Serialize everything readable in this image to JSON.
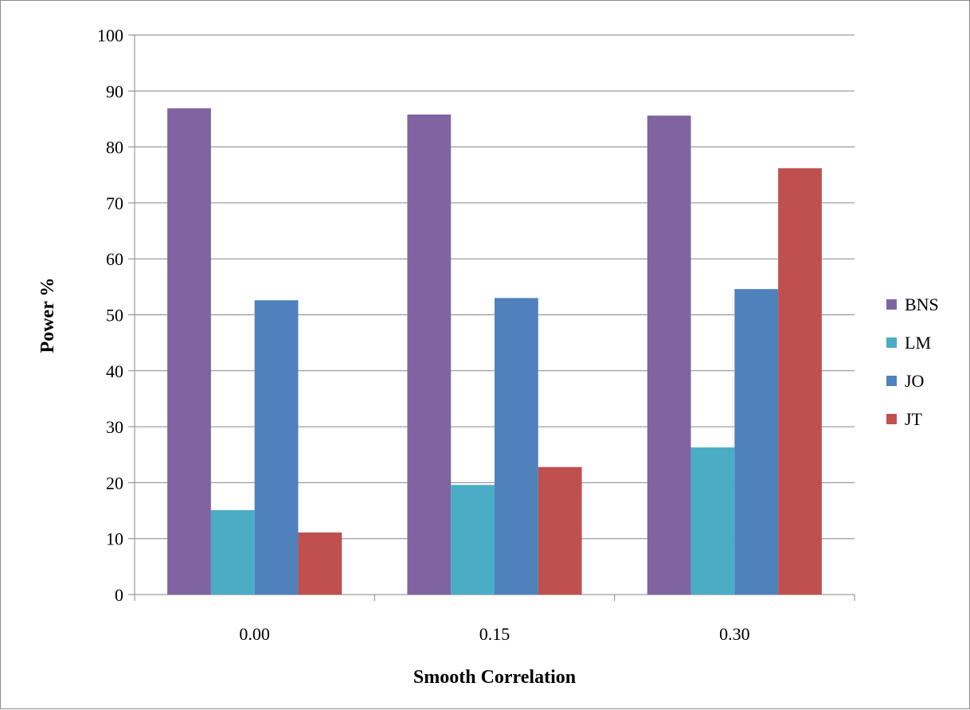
{
  "chart_data": {
    "type": "bar",
    "title": "",
    "xlabel": "Smooth Correlation",
    "ylabel": "Power %",
    "categories": [
      "0.00",
      "0.15",
      "0.30"
    ],
    "ylim": [
      0,
      100
    ],
    "yticks": [
      "0",
      "10",
      "20",
      "30",
      "40",
      "50",
      "60",
      "70",
      "80",
      "90",
      "100"
    ],
    "grid": true,
    "legend_position": "right",
    "series": [
      {
        "name": "BNS",
        "color": "#8064a2",
        "values": [
          86.9,
          85.8,
          85.6
        ]
      },
      {
        "name": "LM",
        "color": "#4bacc6",
        "values": [
          15.1,
          19.6,
          26.3
        ]
      },
      {
        "name": "JO",
        "color": "#4f81bd",
        "values": [
          52.6,
          53.0,
          54.6
        ]
      },
      {
        "name": "JT",
        "color": "#c0504d",
        "values": [
          11.1,
          22.8,
          76.2
        ]
      }
    ]
  }
}
